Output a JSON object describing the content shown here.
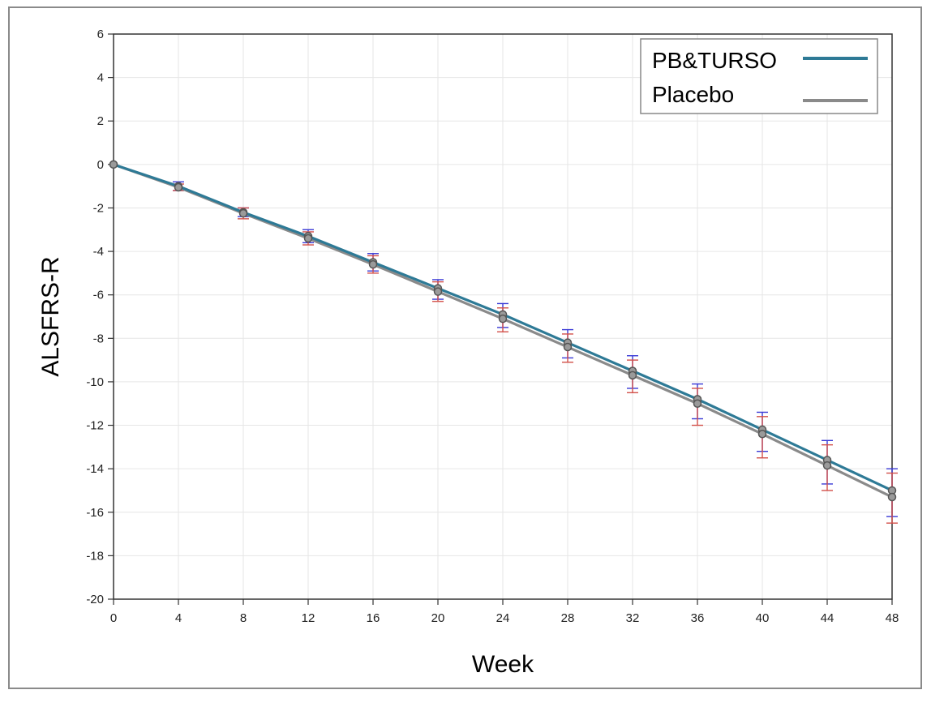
{
  "chart_data": {
    "type": "line",
    "title": "",
    "xlabel": "Week",
    "ylabel": "ALSFRS-R",
    "xlim": [
      0,
      48
    ],
    "ylim": [
      -20,
      6
    ],
    "x_ticks": [
      0,
      4,
      8,
      12,
      16,
      20,
      24,
      28,
      32,
      36,
      40,
      44,
      48
    ],
    "y_ticks": [
      6,
      4,
      2,
      0,
      -2,
      -4,
      -6,
      -8,
      -10,
      -12,
      -14,
      -16,
      -18,
      -20
    ],
    "grid": true,
    "legend_position": "top-right",
    "x": [
      0,
      4,
      8,
      12,
      16,
      20,
      24,
      28,
      32,
      36,
      40,
      44,
      48
    ],
    "series": [
      {
        "name": "PB&TURSO",
        "color": "#2e7a96",
        "values": [
          0,
          -1.0,
          -2.2,
          -3.3,
          -4.5,
          -5.7,
          -6.9,
          -8.2,
          -9.5,
          -10.8,
          -12.2,
          -13.6,
          -15.0
        ],
        "error_low": [
          0,
          -1.2,
          -2.4,
          -3.6,
          -4.9,
          -6.2,
          -7.5,
          -8.9,
          -10.3,
          -11.7,
          -13.2,
          -14.7,
          -16.2
        ],
        "error_high": [
          0,
          -0.8,
          -2.0,
          -3.0,
          -4.1,
          -5.3,
          -6.4,
          -7.6,
          -8.8,
          -10.1,
          -11.4,
          -12.7,
          -14.0
        ]
      },
      {
        "name": "Placebo",
        "color": "#8a8a8a",
        "values": [
          0,
          -1.05,
          -2.25,
          -3.4,
          -4.6,
          -5.85,
          -7.1,
          -8.4,
          -9.7,
          -11.0,
          -12.4,
          -13.85,
          -15.3
        ],
        "error_low": [
          0,
          -1.2,
          -2.5,
          -3.7,
          -5.0,
          -6.3,
          -7.7,
          -9.1,
          -10.5,
          -12.0,
          -13.5,
          -15.0,
          -16.5
        ],
        "error_high": [
          0,
          -0.9,
          -2.0,
          -3.1,
          -4.2,
          -5.4,
          -6.6,
          -7.8,
          -9.0,
          -10.3,
          -11.6,
          -12.9,
          -14.2
        ]
      }
    ]
  },
  "colors": {
    "error_bar_blue": "#3a3ad6",
    "error_bar_red": "#d2504a",
    "marker": "#555555"
  }
}
